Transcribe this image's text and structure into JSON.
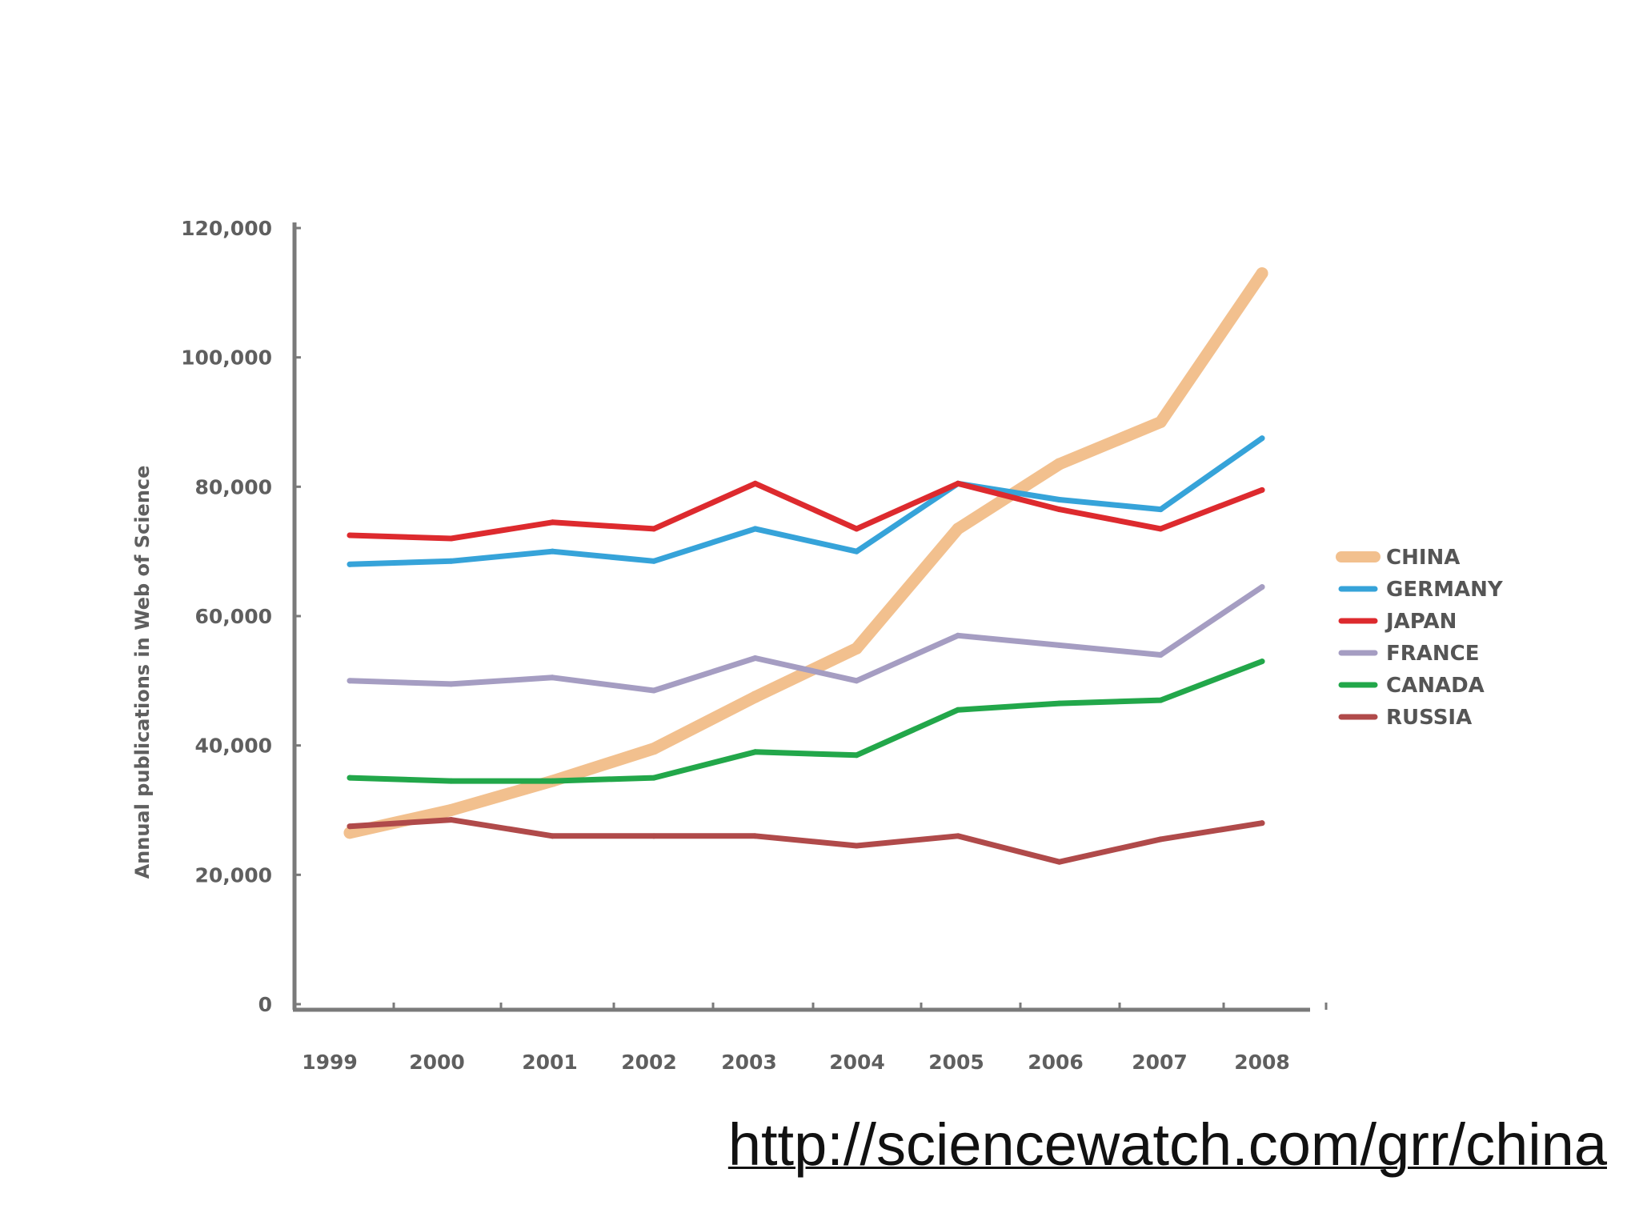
{
  "chart_data": {
    "type": "line",
    "title": "",
    "xlabel": "",
    "ylabel": "Annual publications in Web of Science",
    "x": [
      "1999",
      "2000",
      "2001",
      "2002",
      "2003",
      "2004",
      "2005",
      "2006",
      "2007",
      "2008"
    ],
    "ylim": [
      0,
      120000
    ],
    "yticks": [
      0,
      20000,
      40000,
      60000,
      80000,
      100000,
      120000
    ],
    "ytick_labels": [
      "0",
      "20,000",
      "40,000",
      "60,000",
      "80,000",
      "100,000",
      "120,000"
    ],
    "grid": false,
    "legend_position": "right",
    "series": [
      {
        "name": "CHINA",
        "color": "#f2c08e",
        "values": [
          26500,
          30000,
          34500,
          39500,
          47500,
          55000,
          73500,
          83500,
          90000,
          113000
        ]
      },
      {
        "name": "GERMANY",
        "color": "#36a3d9",
        "values": [
          68000,
          68500,
          70000,
          68500,
          73500,
          70000,
          80500,
          78000,
          76500,
          87500
        ]
      },
      {
        "name": "JAPAN",
        "color": "#dd2a2e",
        "values": [
          72500,
          72000,
          74500,
          73500,
          80500,
          73500,
          80500,
          76500,
          73500,
          79500
        ]
      },
      {
        "name": "FRANCE",
        "color": "#a59dc2",
        "values": [
          50000,
          49500,
          50500,
          48500,
          53500,
          50000,
          57000,
          55500,
          54000,
          64500
        ]
      },
      {
        "name": "CANADA",
        "color": "#22a74a",
        "values": [
          35000,
          34500,
          34500,
          35000,
          39000,
          38500,
          45500,
          46500,
          47000,
          53000
        ]
      },
      {
        "name": "RUSSIA",
        "color": "#b04a4a",
        "values": [
          27500,
          28500,
          26000,
          26000,
          26000,
          24500,
          26000,
          22000,
          25500,
          28000
        ]
      }
    ]
  },
  "footer": {
    "source_url": "http://sciencewatch.com/grr/china"
  }
}
